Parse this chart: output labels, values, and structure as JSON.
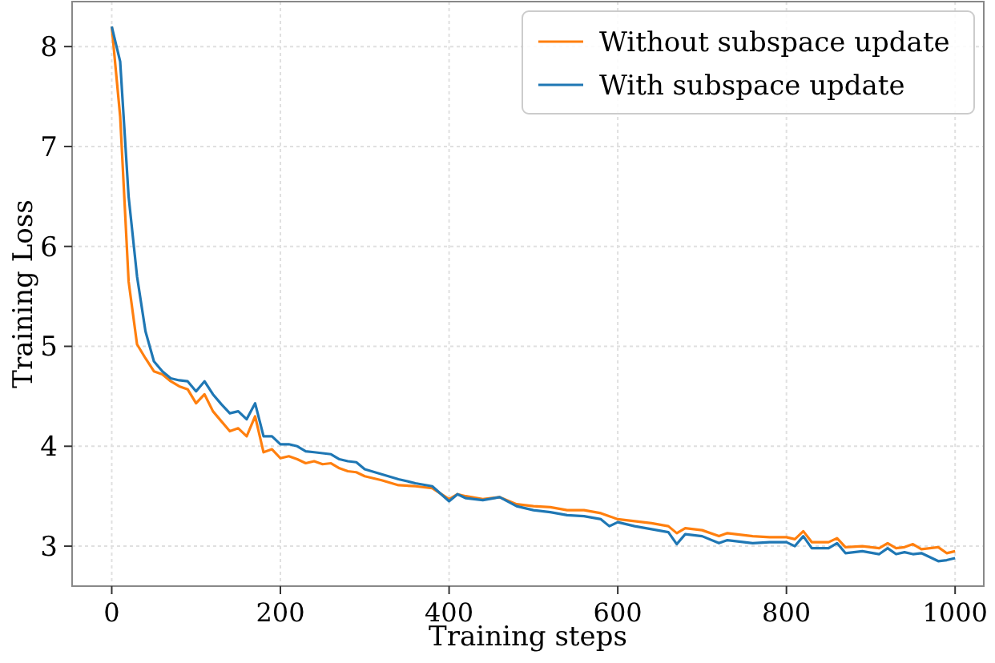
{
  "chart_data": {
    "type": "line",
    "xlabel": "Training steps",
    "ylabel": "Training Loss",
    "xlim": [
      -47,
      1034
    ],
    "ylim": [
      2.6,
      8.45
    ],
    "xticks": [
      0,
      200,
      400,
      600,
      800,
      1000
    ],
    "yticks": [
      3,
      4,
      5,
      6,
      7,
      8
    ],
    "grid": true,
    "legend": "top right",
    "line_style": "solid",
    "marker": "none",
    "x": [
      0,
      10,
      20,
      30,
      40,
      50,
      60,
      70,
      80,
      90,
      100,
      110,
      120,
      130,
      140,
      150,
      160,
      170,
      180,
      190,
      200,
      210,
      220,
      230,
      240,
      250,
      260,
      270,
      280,
      290,
      300,
      320,
      340,
      360,
      380,
      400,
      410,
      420,
      440,
      460,
      480,
      500,
      520,
      540,
      560,
      580,
      590,
      600,
      620,
      640,
      660,
      670,
      680,
      700,
      720,
      730,
      760,
      780,
      800,
      810,
      820,
      830,
      850,
      860,
      870,
      890,
      910,
      920,
      930,
      940,
      950,
      960,
      980,
      990,
      1000
    ],
    "series": [
      {
        "name": "Without subspace update",
        "color": "#ff7f0e",
        "values": [
          8.2,
          7.3,
          5.65,
          5.02,
          4.88,
          4.75,
          4.72,
          4.65,
          4.6,
          4.57,
          4.43,
          4.52,
          4.35,
          4.25,
          4.15,
          4.18,
          4.1,
          4.3,
          3.94,
          3.97,
          3.88,
          3.9,
          3.87,
          3.83,
          3.85,
          3.82,
          3.83,
          3.78,
          3.75,
          3.74,
          3.7,
          3.66,
          3.61,
          3.6,
          3.58,
          3.47,
          3.52,
          3.5,
          3.47,
          3.49,
          3.42,
          3.4,
          3.39,
          3.36,
          3.36,
          3.33,
          3.3,
          3.27,
          3.25,
          3.23,
          3.2,
          3.13,
          3.18,
          3.16,
          3.1,
          3.13,
          3.1,
          3.09,
          3.09,
          3.07,
          3.15,
          3.04,
          3.04,
          3.08,
          2.99,
          3.0,
          2.98,
          3.03,
          2.98,
          2.99,
          3.02,
          2.97,
          2.99,
          2.93,
          2.95
        ]
      },
      {
        "name": "With subspace update",
        "color": "#1f77b4",
        "values": [
          8.2,
          7.85,
          6.5,
          5.7,
          5.15,
          4.85,
          4.75,
          4.68,
          4.66,
          4.65,
          4.55,
          4.65,
          4.52,
          4.42,
          4.33,
          4.35,
          4.27,
          4.43,
          4.1,
          4.1,
          4.02,
          4.02,
          4.0,
          3.95,
          3.94,
          3.93,
          3.92,
          3.87,
          3.85,
          3.84,
          3.77,
          3.72,
          3.67,
          3.63,
          3.6,
          3.45,
          3.52,
          3.48,
          3.46,
          3.49,
          3.4,
          3.36,
          3.34,
          3.31,
          3.3,
          3.27,
          3.2,
          3.24,
          3.2,
          3.17,
          3.14,
          3.02,
          3.12,
          3.1,
          3.03,
          3.06,
          3.03,
          3.04,
          3.04,
          3.0,
          3.1,
          2.98,
          2.98,
          3.03,
          2.93,
          2.95,
          2.92,
          2.98,
          2.92,
          2.94,
          2.92,
          2.93,
          2.85,
          2.86,
          2.88
        ]
      }
    ]
  }
}
